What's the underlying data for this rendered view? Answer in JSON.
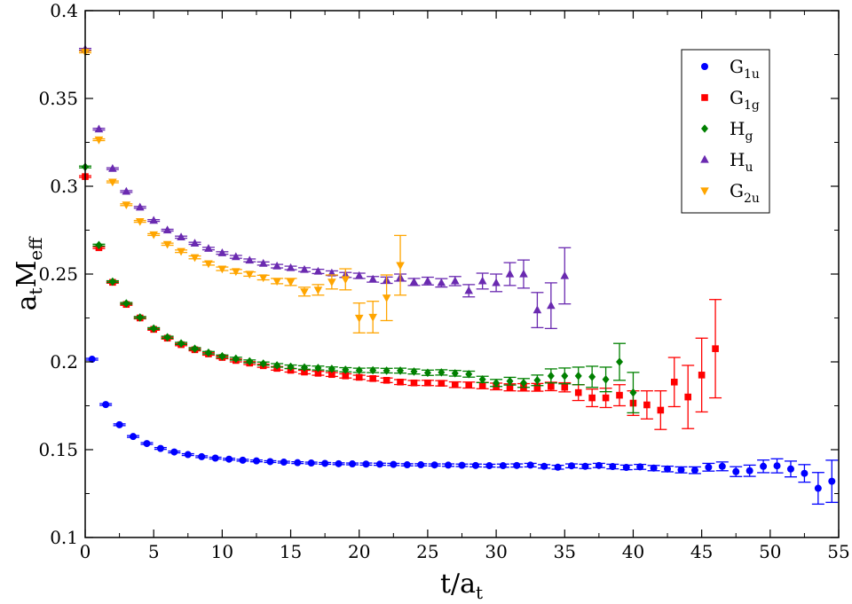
{
  "chart_data": {
    "type": "scatter",
    "title": "",
    "xlabel": {
      "main": "t/a",
      "sub": "t"
    },
    "ylabel": {
      "main": "a",
      "sub": "t",
      "mid": "M",
      "sub2": "eff"
    },
    "xlim": [
      0,
      55
    ],
    "ylim": [
      0.1,
      0.4
    ],
    "xticks": [
      0,
      5,
      10,
      15,
      20,
      25,
      30,
      35,
      40,
      45,
      50,
      55
    ],
    "yticks": [
      0.1,
      0.15,
      0.2,
      0.25,
      0.3,
      0.35,
      0.4
    ],
    "ytick_labels": [
      "0.1",
      "0.15",
      "0.2",
      "0.25",
      "0.3",
      "0.35",
      "0.4"
    ],
    "legend_position": "top-right",
    "series": [
      {
        "name": "G1u",
        "label_main": "G",
        "label_sub": "1u",
        "color": "#0000ff",
        "marker": "circle",
        "points": [
          [
            0.5,
            0.2015,
            0.0005
          ],
          [
            1.5,
            0.1757,
            0.0005
          ],
          [
            2.5,
            0.1642,
            0.0005
          ],
          [
            3.5,
            0.1575,
            0.0005
          ],
          [
            4.5,
            0.1535,
            0.0005
          ],
          [
            5.5,
            0.1507,
            0.0005
          ],
          [
            6.5,
            0.1487,
            0.0005
          ],
          [
            7.5,
            0.1472,
            0.0005
          ],
          [
            8.5,
            0.146,
            0.0005
          ],
          [
            9.5,
            0.1452,
            0.0005
          ],
          [
            10.5,
            0.1446,
            0.0005
          ],
          [
            11.5,
            0.144,
            0.0005
          ],
          [
            12.5,
            0.1436,
            0.0005
          ],
          [
            13.5,
            0.1432,
            0.0005
          ],
          [
            14.5,
            0.1429,
            0.0005
          ],
          [
            15.5,
            0.1426,
            0.0005
          ],
          [
            16.5,
            0.1424,
            0.0005
          ],
          [
            17.5,
            0.1422,
            0.0005
          ],
          [
            18.5,
            0.142,
            0.0005
          ],
          [
            19.5,
            0.1419,
            0.0005
          ],
          [
            20.5,
            0.1418,
            0.0006
          ],
          [
            21.5,
            0.1417,
            0.0006
          ],
          [
            22.5,
            0.1416,
            0.0006
          ],
          [
            23.5,
            0.1414,
            0.0006
          ],
          [
            24.5,
            0.1414,
            0.0006
          ],
          [
            25.5,
            0.1413,
            0.0006
          ],
          [
            26.5,
            0.1412,
            0.0007
          ],
          [
            27.5,
            0.1411,
            0.0007
          ],
          [
            28.5,
            0.141,
            0.0008
          ],
          [
            29.5,
            0.1409,
            0.0008
          ],
          [
            30.5,
            0.1409,
            0.0009
          ],
          [
            31.5,
            0.141,
            0.0009
          ],
          [
            32.5,
            0.1412,
            0.001
          ],
          [
            33.5,
            0.1405,
            0.001
          ],
          [
            34.5,
            0.14,
            0.0011
          ],
          [
            35.5,
            0.1408,
            0.0011
          ],
          [
            36.5,
            0.1405,
            0.0012
          ],
          [
            37.5,
            0.141,
            0.0012
          ],
          [
            38.5,
            0.1404,
            0.0013
          ],
          [
            39.5,
            0.1399,
            0.0013
          ],
          [
            40.5,
            0.1402,
            0.0014
          ],
          [
            41.5,
            0.1395,
            0.0015
          ],
          [
            42.5,
            0.139,
            0.0016
          ],
          [
            43.5,
            0.1385,
            0.0017
          ],
          [
            44.5,
            0.1383,
            0.0019
          ],
          [
            45.5,
            0.14,
            0.0022
          ],
          [
            46.5,
            0.1405,
            0.0025
          ],
          [
            47.5,
            0.1375,
            0.0028
          ],
          [
            48.5,
            0.138,
            0.0032
          ],
          [
            49.5,
            0.1405,
            0.0036
          ],
          [
            50.5,
            0.1408,
            0.004
          ],
          [
            51.5,
            0.139,
            0.0045
          ],
          [
            52.5,
            0.1365,
            0.005
          ],
          [
            53.5,
            0.128,
            0.009
          ],
          [
            54.5,
            0.132,
            0.012
          ]
        ]
      },
      {
        "name": "G1g",
        "label_main": "G",
        "label_sub": "1g",
        "color": "#ff0000",
        "marker": "square",
        "points": [
          [
            0,
            0.3055,
            0.0005
          ],
          [
            1,
            0.265,
            0.0005
          ],
          [
            2,
            0.2453,
            0.0005
          ],
          [
            3,
            0.2327,
            0.0005
          ],
          [
            4,
            0.225,
            0.0005
          ],
          [
            5,
            0.2185,
            0.0005
          ],
          [
            6,
            0.2135,
            0.0005
          ],
          [
            7,
            0.2098,
            0.0006
          ],
          [
            8,
            0.2069,
            0.0006
          ],
          [
            9,
            0.2045,
            0.0007
          ],
          [
            10,
            0.2025,
            0.0007
          ],
          [
            11,
            0.2008,
            0.0008
          ],
          [
            12,
            0.1993,
            0.0008
          ],
          [
            13,
            0.1978,
            0.0009
          ],
          [
            14,
            0.1963,
            0.001
          ],
          [
            15,
            0.1952,
            0.001
          ],
          [
            16,
            0.1942,
            0.001
          ],
          [
            17,
            0.1935,
            0.0011
          ],
          [
            18,
            0.1928,
            0.0011
          ],
          [
            19,
            0.192,
            0.0012
          ],
          [
            20,
            0.1912,
            0.0012
          ],
          [
            21,
            0.1905,
            0.0013
          ],
          [
            22,
            0.1895,
            0.0013
          ],
          [
            23,
            0.1885,
            0.0014
          ],
          [
            24,
            0.188,
            0.0014
          ],
          [
            25,
            0.188,
            0.0015
          ],
          [
            26,
            0.1878,
            0.0015
          ],
          [
            27,
            0.187,
            0.0016
          ],
          [
            28,
            0.1868,
            0.0017
          ],
          [
            29,
            0.1865,
            0.0018
          ],
          [
            30,
            0.186,
            0.0019
          ],
          [
            31,
            0.1855,
            0.002
          ],
          [
            32,
            0.1855,
            0.0021
          ],
          [
            33,
            0.1855,
            0.0022
          ],
          [
            34,
            0.186,
            0.0024
          ],
          [
            35,
            0.1855,
            0.0026
          ],
          [
            36,
            0.1825,
            0.0045
          ],
          [
            37,
            0.1795,
            0.005
          ],
          [
            38,
            0.1795,
            0.0055
          ],
          [
            39,
            0.181,
            0.006
          ],
          [
            40,
            0.1765,
            0.007
          ],
          [
            41,
            0.1755,
            0.008
          ],
          [
            42,
            0.1725,
            0.011
          ],
          [
            43,
            0.1885,
            0.014
          ],
          [
            44,
            0.18,
            0.018
          ],
          [
            45,
            0.1925,
            0.021
          ],
          [
            46,
            0.2075,
            0.028
          ]
        ]
      },
      {
        "name": "Hg",
        "label_main": "H",
        "label_sub": "g",
        "color": "#008000",
        "marker": "diamond",
        "points": [
          [
            0,
            0.311,
            0.0005
          ],
          [
            1,
            0.2665,
            0.0005
          ],
          [
            2,
            0.2457,
            0.0005
          ],
          [
            3,
            0.2333,
            0.0005
          ],
          [
            4,
            0.2253,
            0.0005
          ],
          [
            5,
            0.219,
            0.0005
          ],
          [
            6,
            0.214,
            0.0006
          ],
          [
            7,
            0.2105,
            0.0006
          ],
          [
            8,
            0.2075,
            0.0006
          ],
          [
            9,
            0.2052,
            0.0007
          ],
          [
            10,
            0.2032,
            0.0007
          ],
          [
            11,
            0.2018,
            0.0008
          ],
          [
            12,
            0.2003,
            0.0008
          ],
          [
            13,
            0.199,
            0.0009
          ],
          [
            14,
            0.198,
            0.001
          ],
          [
            15,
            0.1972,
            0.001
          ],
          [
            16,
            0.1968,
            0.001
          ],
          [
            17,
            0.1965,
            0.0011
          ],
          [
            18,
            0.196,
            0.0011
          ],
          [
            19,
            0.1955,
            0.0012
          ],
          [
            20,
            0.1952,
            0.0012
          ],
          [
            21,
            0.1952,
            0.0013
          ],
          [
            22,
            0.195,
            0.0013
          ],
          [
            23,
            0.195,
            0.0014
          ],
          [
            24,
            0.1945,
            0.0014
          ],
          [
            25,
            0.1938,
            0.0015
          ],
          [
            26,
            0.194,
            0.0015
          ],
          [
            27,
            0.1935,
            0.0016
          ],
          [
            28,
            0.193,
            0.0017
          ],
          [
            29,
            0.19,
            0.0018
          ],
          [
            30,
            0.188,
            0.002
          ],
          [
            31,
            0.189,
            0.0022
          ],
          [
            32,
            0.188,
            0.0025
          ],
          [
            33,
            0.1895,
            0.003
          ],
          [
            34,
            0.192,
            0.004
          ],
          [
            35,
            0.192,
            0.0045
          ],
          [
            36,
            0.192,
            0.005
          ],
          [
            37,
            0.1915,
            0.006
          ],
          [
            38,
            0.19,
            0.007
          ],
          [
            39,
            0.2,
            0.0105
          ],
          [
            40,
            0.1825,
            0.0115
          ]
        ]
      },
      {
        "name": "Hu",
        "label_main": "H",
        "label_sub": "u",
        "color": "#6a2ab0",
        "marker": "triangle-up",
        "points": [
          [
            0,
            0.378,
            0.0005
          ],
          [
            1,
            0.3325,
            0.0005
          ],
          [
            2,
            0.31,
            0.0005
          ],
          [
            3,
            0.297,
            0.0005
          ],
          [
            4,
            0.288,
            0.0005
          ],
          [
            5,
            0.2805,
            0.0005
          ],
          [
            6,
            0.275,
            0.0005
          ],
          [
            7,
            0.271,
            0.0006
          ],
          [
            8,
            0.2675,
            0.0006
          ],
          [
            9,
            0.2645,
            0.0007
          ],
          [
            10,
            0.262,
            0.0007
          ],
          [
            11,
            0.2598,
            0.0008
          ],
          [
            12,
            0.2578,
            0.0008
          ],
          [
            13,
            0.256,
            0.0009
          ],
          [
            14,
            0.2545,
            0.001
          ],
          [
            15,
            0.2535,
            0.001
          ],
          [
            16,
            0.2525,
            0.0011
          ],
          [
            17,
            0.2515,
            0.0012
          ],
          [
            18,
            0.2505,
            0.0013
          ],
          [
            19,
            0.2495,
            0.0014
          ],
          [
            20,
            0.249,
            0.0015
          ],
          [
            21,
            0.247,
            0.0016
          ],
          [
            22,
            0.2465,
            0.0018
          ],
          [
            23,
            0.248,
            0.002
          ],
          [
            24,
            0.2455,
            0.002
          ],
          [
            25,
            0.246,
            0.0022
          ],
          [
            26,
            0.245,
            0.0024
          ],
          [
            27,
            0.246,
            0.0026
          ],
          [
            28,
            0.2405,
            0.0035
          ],
          [
            29,
            0.246,
            0.0045
          ],
          [
            30,
            0.245,
            0.005
          ],
          [
            31,
            0.25,
            0.0065
          ],
          [
            32,
            0.25,
            0.008
          ],
          [
            33,
            0.2295,
            0.01
          ],
          [
            34,
            0.232,
            0.013
          ],
          [
            35,
            0.249,
            0.016
          ]
        ]
      },
      {
        "name": "G2u",
        "label_main": "G",
        "label_sub": "2u",
        "color": "#ffa500",
        "marker": "triangle-down",
        "points": [
          [
            0,
            0.3765,
            0.0005
          ],
          [
            1,
            0.3265,
            0.0005
          ],
          [
            2,
            0.3025,
            0.0005
          ],
          [
            3,
            0.2895,
            0.0005
          ],
          [
            4,
            0.28,
            0.0005
          ],
          [
            5,
            0.2725,
            0.0005
          ],
          [
            6,
            0.267,
            0.0006
          ],
          [
            7,
            0.263,
            0.0007
          ],
          [
            8,
            0.2595,
            0.0008
          ],
          [
            9,
            0.256,
            0.0009
          ],
          [
            10,
            0.253,
            0.001
          ],
          [
            11,
            0.2515,
            0.0011
          ],
          [
            12,
            0.25,
            0.0012
          ],
          [
            13,
            0.248,
            0.0013
          ],
          [
            14,
            0.246,
            0.0015
          ],
          [
            15,
            0.2455,
            0.002
          ],
          [
            16,
            0.24,
            0.0025
          ],
          [
            17,
            0.241,
            0.003
          ],
          [
            18,
            0.2455,
            0.004
          ],
          [
            19,
            0.247,
            0.006
          ],
          [
            20,
            0.225,
            0.0085
          ],
          [
            21,
            0.2255,
            0.009
          ],
          [
            22,
            0.2365,
            0.013
          ],
          [
            23,
            0.255,
            0.017
          ]
        ]
      }
    ]
  }
}
